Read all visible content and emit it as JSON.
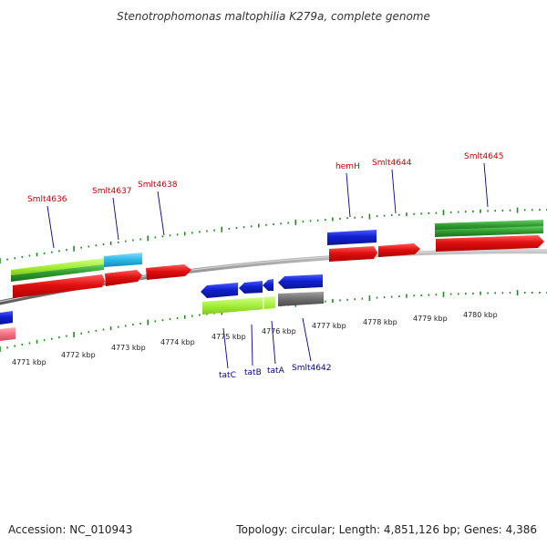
{
  "title": "Stenotrophomonas maltophilia K279a, complete genome",
  "footer": {
    "accession": "Accession: NC_010943",
    "summary": "Topology: circular; Length: 4,851,126 bp; Genes: 4,386"
  },
  "scale_labels": [
    "4771 kbp",
    "4772 kbp",
    "4773 kbp",
    "4774 kbp",
    "4775 kbp",
    "4776 kbp",
    "4777 kbp",
    "4778 kbp",
    "4779 kbp",
    "4780 kbp"
  ],
  "top_gene_labels": [
    "Smlt4636",
    "Smlt4637",
    "Smlt4638",
    "hemH",
    "Smlt4644",
    "Smlt4645"
  ],
  "bottom_gene_labels": [
    "tatC",
    "tatB",
    "tatA",
    "Smlt4642"
  ],
  "colors": {
    "forward_label": "#cc0000",
    "reverse_label": "#000099",
    "cds_red": "#e01010",
    "cds_blue": "#1020d0",
    "gene_green": "#2e9a2e",
    "lime": "#a6f03a",
    "cyan": "#29b8e8",
    "gray": "#6e6e6e",
    "backbone": "#8c8c8c",
    "tick_green": "#228b22"
  }
}
